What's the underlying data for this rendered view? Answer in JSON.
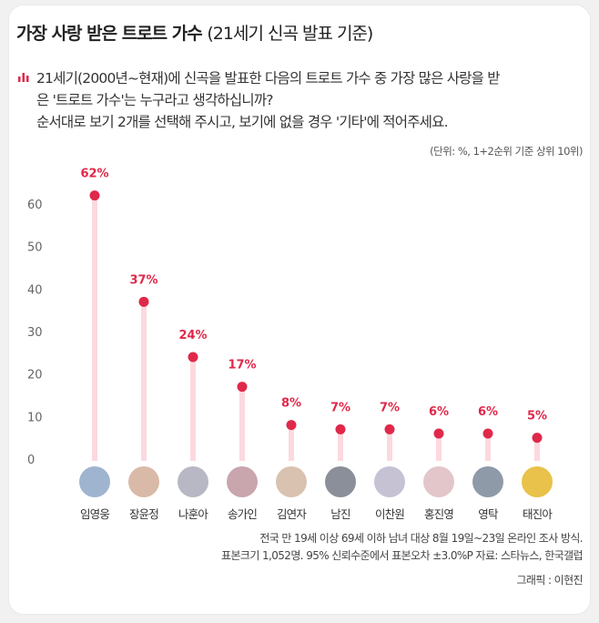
{
  "title": "가장 사랑 받은 트로트 가수",
  "title_sub": "(21세기 신곡 발표 기준)",
  "question_lines": [
    "21세기(2000년~현재)에 신곡을 발표한 다음의 트로트 가수 중 가장 많은 사랑을 받",
    "은 '트로트 가수'는 누구라고 생각하십니까?",
    "순서대로 보기 2개를 선택해 주시고, 보기에 없을 경우 '기타'에 적어주세요."
  ],
  "question_icon": "bar-chart-icon",
  "unit_note": "(단위: %, 1+2순위 기준 상위 10위)",
  "footnote_lines": [
    "전국 만 19세 이상 69세 이하 남녀 대상 8월 19일~23일 온라인 조사 방식.",
    "표본크기 1,052명. 95% 신뢰수준에서 표본오차 ±3.0%P 자료: 스타뉴스, 한국갤럽"
  ],
  "credit": "그래픽 : 이현진",
  "colors": {
    "accent": "#e0284a",
    "stem": "#fcd9df"
  },
  "chart_data": {
    "type": "lollipop",
    "categories": [
      "임영웅",
      "장윤정",
      "나훈아",
      "송가인",
      "김연자",
      "남진",
      "이찬원",
      "홍진영",
      "영탁",
      "태진아"
    ],
    "values": [
      62,
      37,
      24,
      17,
      8,
      7,
      7,
      6,
      6,
      5
    ],
    "data_labels": [
      "62%",
      "37%",
      "24%",
      "17%",
      "8%",
      "7%",
      "7%",
      "6%",
      "6%",
      "5%"
    ],
    "yticks": [
      "0",
      "10",
      "20",
      "30",
      "40",
      "50",
      "60"
    ],
    "ylim": [
      0,
      70
    ],
    "grid": false
  }
}
